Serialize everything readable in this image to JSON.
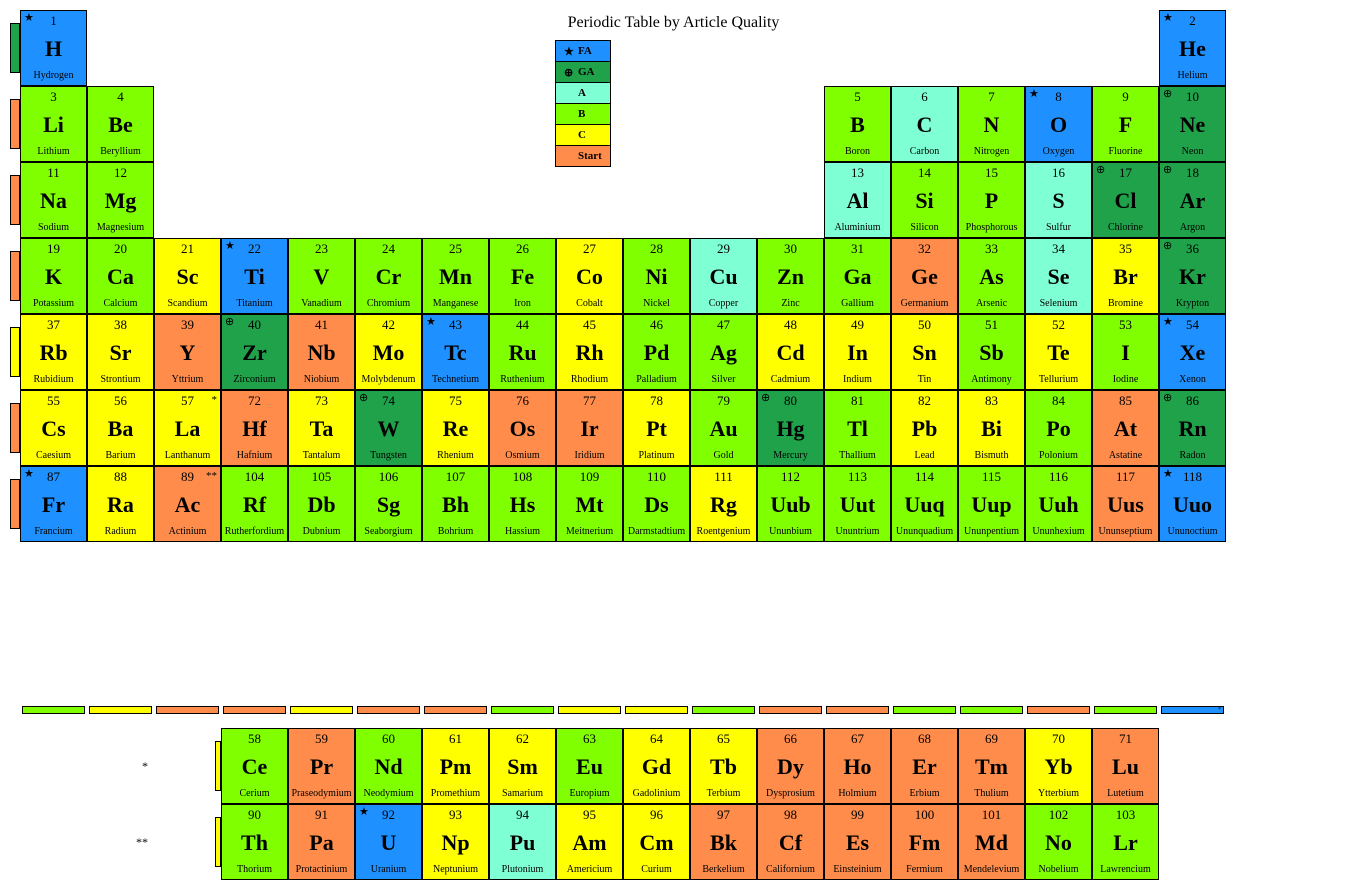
{
  "title": "Periodic Table by Article Quality",
  "colors": {
    "FA": "#1e90ff",
    "GA": "#1fa24a",
    "A": "#7fffd4",
    "B": "#7fff00",
    "C": "#ffff00",
    "Start": "#ff8c4b"
  },
  "legend": [
    {
      "label": "FA",
      "icon": "★",
      "color": "#1e90ff"
    },
    {
      "label": "GA",
      "icon": "⊕",
      "color": "#1fa24a"
    },
    {
      "label": "A",
      "icon": "",
      "color": "#7fffd4"
    },
    {
      "label": "B",
      "icon": "",
      "color": "#7fff00"
    },
    {
      "label": "C",
      "icon": "",
      "color": "#ffff00"
    },
    {
      "label": "Start",
      "icon": "",
      "color": "#ff8c4b"
    }
  ],
  "side_tabs": [
    {
      "row": 1,
      "color": "#1fa24a"
    },
    {
      "row": 2,
      "color": "#ff8c4b"
    },
    {
      "row": 3,
      "color": "#ff8c4b"
    },
    {
      "row": 4,
      "color": "#ff8c4b"
    },
    {
      "row": 5,
      "color": "#ffff00"
    },
    {
      "row": 6,
      "color": "#ff8c4b"
    },
    {
      "row": 7,
      "color": "#ff8c4b"
    }
  ],
  "fblock_side_tabs": [
    {
      "row": 1,
      "color": "#ffff00"
    },
    {
      "row": 2,
      "color": "#ffff00"
    }
  ],
  "elements": [
    {
      "n": 1,
      "s": "H",
      "name": "Hydrogen",
      "g": 1,
      "p": 1,
      "q": "FA",
      "mark": "★"
    },
    {
      "n": 2,
      "s": "He",
      "name": "Helium",
      "g": 18,
      "p": 1,
      "q": "FA",
      "mark": "★"
    },
    {
      "n": 3,
      "s": "Li",
      "name": "Lithium",
      "g": 1,
      "p": 2,
      "q": "B"
    },
    {
      "n": 4,
      "s": "Be",
      "name": "Beryllium",
      "g": 2,
      "p": 2,
      "q": "B"
    },
    {
      "n": 5,
      "s": "B",
      "name": "Boron",
      "g": 13,
      "p": 2,
      "q": "B"
    },
    {
      "n": 6,
      "s": "C",
      "name": "Carbon",
      "g": 14,
      "p": 2,
      "q": "A"
    },
    {
      "n": 7,
      "s": "N",
      "name": "Nitrogen",
      "g": 15,
      "p": 2,
      "q": "B"
    },
    {
      "n": 8,
      "s": "O",
      "name": "Oxygen",
      "g": 16,
      "p": 2,
      "q": "FA",
      "mark": "★"
    },
    {
      "n": 9,
      "s": "F",
      "name": "Fluorine",
      "g": 17,
      "p": 2,
      "q": "B"
    },
    {
      "n": 10,
      "s": "Ne",
      "name": "Neon",
      "g": 18,
      "p": 2,
      "q": "GA",
      "mark": "⊕"
    },
    {
      "n": 11,
      "s": "Na",
      "name": "Sodium",
      "g": 1,
      "p": 3,
      "q": "B"
    },
    {
      "n": 12,
      "s": "Mg",
      "name": "Magnesium",
      "g": 2,
      "p": 3,
      "q": "B"
    },
    {
      "n": 13,
      "s": "Al",
      "name": "Aluminium",
      "g": 13,
      "p": 3,
      "q": "A"
    },
    {
      "n": 14,
      "s": "Si",
      "name": "Silicon",
      "g": 14,
      "p": 3,
      "q": "B"
    },
    {
      "n": 15,
      "s": "P",
      "name": "Phosphorous",
      "g": 15,
      "p": 3,
      "q": "B"
    },
    {
      "n": 16,
      "s": "S",
      "name": "Sulfur",
      "g": 16,
      "p": 3,
      "q": "A"
    },
    {
      "n": 17,
      "s": "Cl",
      "name": "Chlorine",
      "g": 17,
      "p": 3,
      "q": "GA",
      "mark": "⊕"
    },
    {
      "n": 18,
      "s": "Ar",
      "name": "Argon",
      "g": 18,
      "p": 3,
      "q": "GA",
      "mark": "⊕"
    },
    {
      "n": 19,
      "s": "K",
      "name": "Potassium",
      "g": 1,
      "p": 4,
      "q": "B"
    },
    {
      "n": 20,
      "s": "Ca",
      "name": "Calcium",
      "g": 2,
      "p": 4,
      "q": "B"
    },
    {
      "n": 21,
      "s": "Sc",
      "name": "Scandium",
      "g": 3,
      "p": 4,
      "q": "C"
    },
    {
      "n": 22,
      "s": "Ti",
      "name": "Titanium",
      "g": 4,
      "p": 4,
      "q": "FA",
      "mark": "★"
    },
    {
      "n": 23,
      "s": "V",
      "name": "Vanadium",
      "g": 5,
      "p": 4,
      "q": "B"
    },
    {
      "n": 24,
      "s": "Cr",
      "name": "Chromium",
      "g": 6,
      "p": 4,
      "q": "B"
    },
    {
      "n": 25,
      "s": "Mn",
      "name": "Manganese",
      "g": 7,
      "p": 4,
      "q": "B"
    },
    {
      "n": 26,
      "s": "Fe",
      "name": "Iron",
      "g": 8,
      "p": 4,
      "q": "B"
    },
    {
      "n": 27,
      "s": "Co",
      "name": "Cobalt",
      "g": 9,
      "p": 4,
      "q": "C"
    },
    {
      "n": 28,
      "s": "Ni",
      "name": "Nickel",
      "g": 10,
      "p": 4,
      "q": "B"
    },
    {
      "n": 29,
      "s": "Cu",
      "name": "Copper",
      "g": 11,
      "p": 4,
      "q": "A"
    },
    {
      "n": 30,
      "s": "Zn",
      "name": "Zinc",
      "g": 12,
      "p": 4,
      "q": "B"
    },
    {
      "n": 31,
      "s": "Ga",
      "name": "Gallium",
      "g": 13,
      "p": 4,
      "q": "B"
    },
    {
      "n": 32,
      "s": "Ge",
      "name": "Germanium",
      "g": 14,
      "p": 4,
      "q": "Start"
    },
    {
      "n": 33,
      "s": "As",
      "name": "Arsenic",
      "g": 15,
      "p": 4,
      "q": "B"
    },
    {
      "n": 34,
      "s": "Se",
      "name": "Selenium",
      "g": 16,
      "p": 4,
      "q": "A"
    },
    {
      "n": 35,
      "s": "Br",
      "name": "Bromine",
      "g": 17,
      "p": 4,
      "q": "C"
    },
    {
      "n": 36,
      "s": "Kr",
      "name": "Krypton",
      "g": 18,
      "p": 4,
      "q": "GA",
      "mark": "⊕"
    },
    {
      "n": 37,
      "s": "Rb",
      "name": "Rubidium",
      "g": 1,
      "p": 5,
      "q": "C"
    },
    {
      "n": 38,
      "s": "Sr",
      "name": "Strontium",
      "g": 2,
      "p": 5,
      "q": "C"
    },
    {
      "n": 39,
      "s": "Y",
      "name": "Yttrium",
      "g": 3,
      "p": 5,
      "q": "Start"
    },
    {
      "n": 40,
      "s": "Zr",
      "name": "Zirconium",
      "g": 4,
      "p": 5,
      "q": "GA",
      "mark": "⊕"
    },
    {
      "n": 41,
      "s": "Nb",
      "name": "Niobium",
      "g": 5,
      "p": 5,
      "q": "Start"
    },
    {
      "n": 42,
      "s": "Mo",
      "name": "Molybdenum",
      "g": 6,
      "p": 5,
      "q": "C"
    },
    {
      "n": 43,
      "s": "Tc",
      "name": "Technetium",
      "g": 7,
      "p": 5,
      "q": "FA",
      "mark": "★"
    },
    {
      "n": 44,
      "s": "Ru",
      "name": "Ruthenium",
      "g": 8,
      "p": 5,
      "q": "B"
    },
    {
      "n": 45,
      "s": "Rh",
      "name": "Rhodium",
      "g": 9,
      "p": 5,
      "q": "C"
    },
    {
      "n": 46,
      "s": "Pd",
      "name": "Palladium",
      "g": 10,
      "p": 5,
      "q": "B"
    },
    {
      "n": 47,
      "s": "Ag",
      "name": "Silver",
      "g": 11,
      "p": 5,
      "q": "B"
    },
    {
      "n": 48,
      "s": "Cd",
      "name": "Cadmium",
      "g": 12,
      "p": 5,
      "q": "C"
    },
    {
      "n": 49,
      "s": "In",
      "name": "Indium",
      "g": 13,
      "p": 5,
      "q": "C"
    },
    {
      "n": 50,
      "s": "Sn",
      "name": "Tin",
      "g": 14,
      "p": 5,
      "q": "C"
    },
    {
      "n": 51,
      "s": "Sb",
      "name": "Antimony",
      "g": 15,
      "p": 5,
      "q": "B"
    },
    {
      "n": 52,
      "s": "Te",
      "name": "Tellurium",
      "g": 16,
      "p": 5,
      "q": "C"
    },
    {
      "n": 53,
      "s": "I",
      "name": "Iodine",
      "g": 17,
      "p": 5,
      "q": "B"
    },
    {
      "n": 54,
      "s": "Xe",
      "name": "Xenon",
      "g": 18,
      "p": 5,
      "q": "FA",
      "mark": "★"
    },
    {
      "n": 55,
      "s": "Cs",
      "name": "Caesium",
      "g": 1,
      "p": 6,
      "q": "C"
    },
    {
      "n": 56,
      "s": "Ba",
      "name": "Barium",
      "g": 2,
      "p": 6,
      "q": "C"
    },
    {
      "n": 57,
      "s": "La",
      "name": "Lanthanum",
      "g": 3,
      "p": 6,
      "q": "C",
      "note": "*"
    },
    {
      "n": 72,
      "s": "Hf",
      "name": "Hafnium",
      "g": 4,
      "p": 6,
      "q": "Start"
    },
    {
      "n": 73,
      "s": "Ta",
      "name": "Tantalum",
      "g": 5,
      "p": 6,
      "q": "C"
    },
    {
      "n": 74,
      "s": "W",
      "name": "Tungsten",
      "g": 6,
      "p": 6,
      "q": "GA",
      "mark": "⊕"
    },
    {
      "n": 75,
      "s": "Re",
      "name": "Rhenium",
      "g": 7,
      "p": 6,
      "q": "C"
    },
    {
      "n": 76,
      "s": "Os",
      "name": "Osmium",
      "g": 8,
      "p": 6,
      "q": "Start"
    },
    {
      "n": 77,
      "s": "Ir",
      "name": "Iridium",
      "g": 9,
      "p": 6,
      "q": "Start"
    },
    {
      "n": 78,
      "s": "Pt",
      "name": "Platinum",
      "g": 10,
      "p": 6,
      "q": "C"
    },
    {
      "n": 79,
      "s": "Au",
      "name": "Gold",
      "g": 11,
      "p": 6,
      "q": "B"
    },
    {
      "n": 80,
      "s": "Hg",
      "name": "Mercury",
      "g": 12,
      "p": 6,
      "q": "GA",
      "mark": "⊕"
    },
    {
      "n": 81,
      "s": "Tl",
      "name": "Thallium",
      "g": 13,
      "p": 6,
      "q": "B"
    },
    {
      "n": 82,
      "s": "Pb",
      "name": "Lead",
      "g": 14,
      "p": 6,
      "q": "C"
    },
    {
      "n": 83,
      "s": "Bi",
      "name": "Bismuth",
      "g": 15,
      "p": 6,
      "q": "C"
    },
    {
      "n": 84,
      "s": "Po",
      "name": "Polonium",
      "g": 16,
      "p": 6,
      "q": "B"
    },
    {
      "n": 85,
      "s": "At",
      "name": "Astatine",
      "g": 17,
      "p": 6,
      "q": "Start"
    },
    {
      "n": 86,
      "s": "Rn",
      "name": "Radon",
      "g": 18,
      "p": 6,
      "q": "GA",
      "mark": "⊕"
    },
    {
      "n": 87,
      "s": "Fr",
      "name": "Francium",
      "g": 1,
      "p": 7,
      "q": "FA",
      "mark": "★"
    },
    {
      "n": 88,
      "s": "Ra",
      "name": "Radium",
      "g": 2,
      "p": 7,
      "q": "C"
    },
    {
      "n": 89,
      "s": "Ac",
      "name": "Actinium",
      "g": 3,
      "p": 7,
      "q": "Start",
      "note": "**"
    },
    {
      "n": 104,
      "s": "Rf",
      "name": "Rutherfordium",
      "g": 4,
      "p": 7,
      "q": "B"
    },
    {
      "n": 105,
      "s": "Db",
      "name": "Dubnium",
      "g": 5,
      "p": 7,
      "q": "B"
    },
    {
      "n": 106,
      "s": "Sg",
      "name": "Seaborgium",
      "g": 6,
      "p": 7,
      "q": "B"
    },
    {
      "n": 107,
      "s": "Bh",
      "name": "Bohrium",
      "g": 7,
      "p": 7,
      "q": "B"
    },
    {
      "n": 108,
      "s": "Hs",
      "name": "Hassium",
      "g": 8,
      "p": 7,
      "q": "B"
    },
    {
      "n": 109,
      "s": "Mt",
      "name": "Meitnerium",
      "g": 9,
      "p": 7,
      "q": "B"
    },
    {
      "n": 110,
      "s": "Ds",
      "name": "Darmstadtium",
      "g": 10,
      "p": 7,
      "q": "B"
    },
    {
      "n": 111,
      "s": "Rg",
      "name": "Roentgenium",
      "g": 11,
      "p": 7,
      "q": "C"
    },
    {
      "n": 112,
      "s": "Uub",
      "name": "Ununbium",
      "g": 12,
      "p": 7,
      "q": "B"
    },
    {
      "n": 113,
      "s": "Uut",
      "name": "Ununtrium",
      "g": 13,
      "p": 7,
      "q": "B"
    },
    {
      "n": 114,
      "s": "Uuq",
      "name": "Ununquadium",
      "g": 14,
      "p": 7,
      "q": "B"
    },
    {
      "n": 115,
      "s": "Uup",
      "name": "Ununpentium",
      "g": 15,
      "p": 7,
      "q": "B"
    },
    {
      "n": 116,
      "s": "Uuh",
      "name": "Ununhexium",
      "g": 16,
      "p": 7,
      "q": "B"
    },
    {
      "n": 117,
      "s": "Uus",
      "name": "Ununseptium",
      "g": 17,
      "p": 7,
      "q": "Start"
    },
    {
      "n": 118,
      "s": "Uuo",
      "name": "Ununoctium",
      "g": 18,
      "p": 7,
      "q": "FA",
      "mark": "★"
    }
  ],
  "fblock": [
    {
      "n": 58,
      "s": "Ce",
      "name": "Cerium",
      "col": 4,
      "row": 1,
      "q": "B"
    },
    {
      "n": 59,
      "s": "Pr",
      "name": "Praseodymium",
      "col": 5,
      "row": 1,
      "q": "Start"
    },
    {
      "n": 60,
      "s": "Nd",
      "name": "Neodymium",
      "col": 6,
      "row": 1,
      "q": "B"
    },
    {
      "n": 61,
      "s": "Pm",
      "name": "Promethium",
      "col": 7,
      "row": 1,
      "q": "C"
    },
    {
      "n": 62,
      "s": "Sm",
      "name": "Samarium",
      "col": 8,
      "row": 1,
      "q": "C"
    },
    {
      "n": 63,
      "s": "Eu",
      "name": "Europium",
      "col": 9,
      "row": 1,
      "q": "B"
    },
    {
      "n": 64,
      "s": "Gd",
      "name": "Gadolinium",
      "col": 10,
      "row": 1,
      "q": "C"
    },
    {
      "n": 65,
      "s": "Tb",
      "name": "Terbium",
      "col": 11,
      "row": 1,
      "q": "C"
    },
    {
      "n": 66,
      "s": "Dy",
      "name": "Dysprosium",
      "col": 12,
      "row": 1,
      "q": "Start"
    },
    {
      "n": 67,
      "s": "Ho",
      "name": "Holmium",
      "col": 13,
      "row": 1,
      "q": "Start"
    },
    {
      "n": 68,
      "s": "Er",
      "name": "Erbium",
      "col": 14,
      "row": 1,
      "q": "Start"
    },
    {
      "n": 69,
      "s": "Tm",
      "name": "Thulium",
      "col": 15,
      "row": 1,
      "q": "Start"
    },
    {
      "n": 70,
      "s": "Yb",
      "name": "Ytterbium",
      "col": 16,
      "row": 1,
      "q": "C"
    },
    {
      "n": 71,
      "s": "Lu",
      "name": "Lutetium",
      "col": 17,
      "row": 1,
      "q": "Start"
    },
    {
      "n": 90,
      "s": "Th",
      "name": "Thorium",
      "col": 4,
      "row": 2,
      "q": "B"
    },
    {
      "n": 91,
      "s": "Pa",
      "name": "Protactinium",
      "col": 5,
      "row": 2,
      "q": "Start"
    },
    {
      "n": 92,
      "s": "U",
      "name": "Uranium",
      "col": 6,
      "row": 2,
      "q": "FA",
      "mark": "★"
    },
    {
      "n": 93,
      "s": "Np",
      "name": "Neptunium",
      "col": 7,
      "row": 2,
      "q": "C"
    },
    {
      "n": 94,
      "s": "Pu",
      "name": "Plutonium",
      "col": 8,
      "row": 2,
      "q": "A"
    },
    {
      "n": 95,
      "s": "Am",
      "name": "Americium",
      "col": 9,
      "row": 2,
      "q": "C"
    },
    {
      "n": 96,
      "s": "Cm",
      "name": "Curium",
      "col": 10,
      "row": 2,
      "q": "C"
    },
    {
      "n": 97,
      "s": "Bk",
      "name": "Berkelium",
      "col": 11,
      "row": 2,
      "q": "Start"
    },
    {
      "n": 98,
      "s": "Cf",
      "name": "Californium",
      "col": 12,
      "row": 2,
      "q": "Start"
    },
    {
      "n": 99,
      "s": "Es",
      "name": "Einsteinium",
      "col": 13,
      "row": 2,
      "q": "Start"
    },
    {
      "n": 100,
      "s": "Fm",
      "name": "Fermium",
      "col": 14,
      "row": 2,
      "q": "Start"
    },
    {
      "n": 101,
      "s": "Md",
      "name": "Mendelevium",
      "col": 15,
      "row": 2,
      "q": "Start"
    },
    {
      "n": 102,
      "s": "No",
      "name": "Nobelium",
      "col": 16,
      "row": 2,
      "q": "B"
    },
    {
      "n": 103,
      "s": "Lr",
      "name": "Lawrencium",
      "col": 17,
      "row": 2,
      "q": "B"
    }
  ],
  "bottom_strip": [
    {
      "g": 1,
      "color": "#7fff00"
    },
    {
      "g": 2,
      "color": "#ffff00"
    },
    {
      "g": 3,
      "color": "#ff8c4b"
    },
    {
      "g": 4,
      "color": "#ff8c4b"
    },
    {
      "g": 5,
      "color": "#ffff00"
    },
    {
      "g": 6,
      "color": "#ff8c4b"
    },
    {
      "g": 7,
      "color": "#ff8c4b"
    },
    {
      "g": 8,
      "color": "#7fff00"
    },
    {
      "g": 9,
      "color": "#ffff00"
    },
    {
      "g": 10,
      "color": "#ffff00"
    },
    {
      "g": 11,
      "color": "#7fff00"
    },
    {
      "g": 12,
      "color": "#ff8c4b"
    },
    {
      "g": 13,
      "color": "#ff8c4b"
    },
    {
      "g": 14,
      "color": "#7fff00"
    },
    {
      "g": 15,
      "color": "#7fff00"
    },
    {
      "g": 16,
      "color": "#ff8c4b"
    },
    {
      "g": 17,
      "color": "#7fff00"
    },
    {
      "g": 18,
      "color": "#1e90ff",
      "note": "*"
    }
  ],
  "row_labels": {
    "lan": "*",
    "act": "**"
  }
}
